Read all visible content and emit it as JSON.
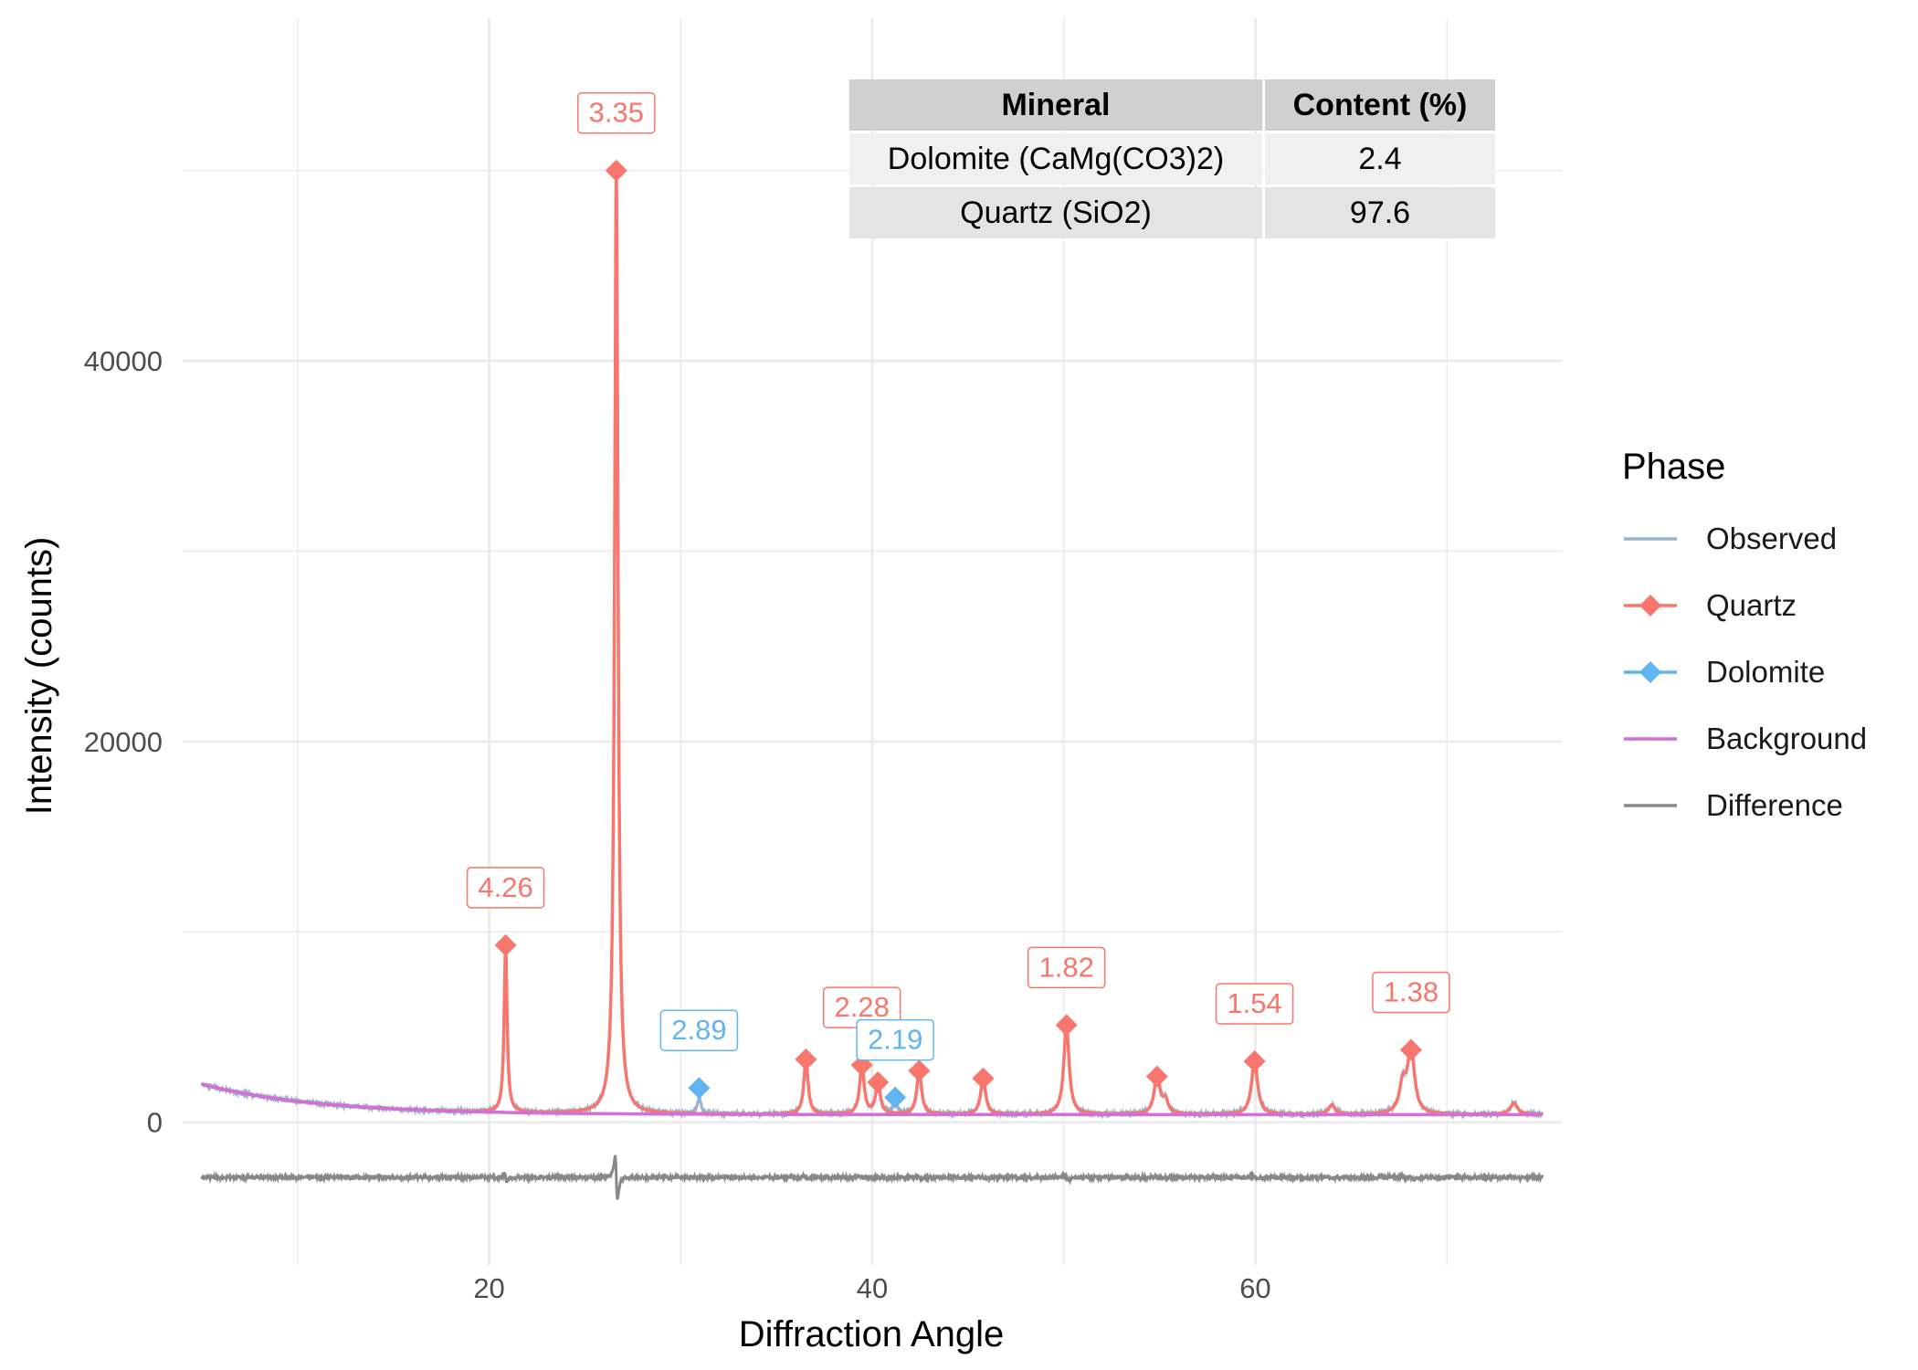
{
  "chart_data": {
    "type": "line",
    "xlabel": "Diffraction Angle",
    "ylabel": "Intensity (counts)",
    "xlim": [
      4,
      76
    ],
    "ylim": [
      -7500,
      58000
    ],
    "x_ticks": [
      20,
      40,
      60
    ],
    "y_ticks": [
      0,
      20000,
      40000
    ],
    "grid": true,
    "legend": {
      "title": "Phase",
      "position": "right",
      "entries": [
        {
          "name": "Observed",
          "color": "#9AB3CC",
          "marker": "none"
        },
        {
          "name": "Quartz",
          "color": "#F8766D",
          "marker": "diamond"
        },
        {
          "name": "Dolomite",
          "color": "#62B4F0",
          "marker": "diamond"
        },
        {
          "name": "Background",
          "color": "#D26FD8",
          "marker": "none"
        },
        {
          "name": "Difference",
          "color": "#888888",
          "marker": "none"
        }
      ]
    },
    "x_range": [
      5,
      75
    ],
    "background": {
      "a": 400,
      "b": 1600,
      "decay": 6
    },
    "difference_offset": -2900,
    "quartz_peaks": [
      {
        "x": 20.86,
        "y": 9300,
        "label": "4.26"
      },
      {
        "x": 26.64,
        "y": 50000,
        "label": "3.35"
      },
      {
        "x": 36.54,
        "y": 3300,
        "label": ""
      },
      {
        "x": 39.46,
        "y": 3000,
        "label": "2.28"
      },
      {
        "x": 40.3,
        "y": 2100,
        "label": ""
      },
      {
        "x": 42.45,
        "y": 2700,
        "label": ""
      },
      {
        "x": 45.79,
        "y": 2300,
        "label": ""
      },
      {
        "x": 50.14,
        "y": 5100,
        "label": "1.82"
      },
      {
        "x": 54.87,
        "y": 2400,
        "label": ""
      },
      {
        "x": 59.96,
        "y": 3200,
        "label": "1.54"
      },
      {
        "x": 68.13,
        "y": 3800,
        "label": "1.38"
      }
    ],
    "quartz_minor": [
      {
        "x": 55.3,
        "y": 1100
      },
      {
        "x": 64.0,
        "y": 900
      },
      {
        "x": 67.7,
        "y": 1900
      },
      {
        "x": 73.5,
        "y": 1000
      }
    ],
    "dolomite_peaks": [
      {
        "x": 30.96,
        "y": 1800,
        "label": "2.89"
      },
      {
        "x": 41.2,
        "y": 1300,
        "label": "2.19"
      }
    ],
    "table": {
      "headers": [
        "Mineral",
        "Content (%)"
      ],
      "rows": [
        [
          "Dolomite (CaMg(CO3)2)",
          "2.4"
        ],
        [
          "Quartz (SiO2)",
          "97.6"
        ]
      ]
    }
  }
}
